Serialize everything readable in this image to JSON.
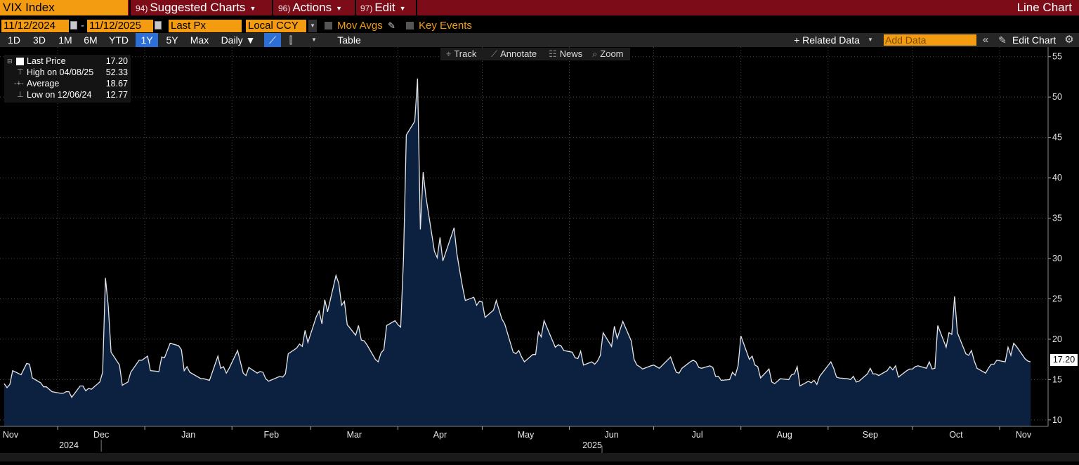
{
  "header": {
    "ticker": "VIX Index",
    "menus": [
      {
        "num": "94)",
        "label": "Suggested Charts"
      },
      {
        "num": "96)",
        "label": "Actions"
      },
      {
        "num": "97)",
        "label": "Edit"
      }
    ],
    "chart_type": "Line Chart"
  },
  "options": {
    "start_date": "11/12/2024",
    "end_date": "11/12/2025",
    "date_sep": "-",
    "field": "Last Px",
    "currency": "Local CCY",
    "mov_avgs": "Mov Avgs",
    "key_events": "Key Events"
  },
  "toolbar": {
    "periods": [
      "1D",
      "3D",
      "1M",
      "6M",
      "YTD",
      "1Y",
      "5Y",
      "Max"
    ],
    "active_period": "1Y",
    "frequency": "Daily ▼",
    "table": "Table",
    "related_data": "+ Related Data",
    "add_data_placeholder": "Add Data",
    "edit_chart": "Edit Chart"
  },
  "chart_tools": [
    "Track",
    "Annotate",
    "News",
    "Zoom"
  ],
  "legend": {
    "last_label": "Last Price",
    "last_value": "17.20",
    "high_label": "High on 04/08/25",
    "high_value": "52.33",
    "avg_label": "Average",
    "avg_value": "18.67",
    "low_label": "Low on 12/06/24",
    "low_value": "12.77"
  },
  "chart_data": {
    "type": "area",
    "series": [
      {
        "name": "VIX Index",
        "color": "#ffffff",
        "fill": "#0d2240"
      }
    ],
    "x_start": "2024-11-12",
    "x_end": "2025-11-12",
    "x_labels": [
      "Nov",
      "Dec",
      "Jan",
      "Feb",
      "Mar",
      "Apr",
      "May",
      "Jun",
      "Jul",
      "Aug",
      "Sep",
      "Oct",
      "Nov"
    ],
    "year_labels": [
      "2024",
      "2025"
    ],
    "y_ticks": [
      10,
      15,
      20,
      25,
      30,
      35,
      40,
      45,
      50,
      55
    ],
    "ylim": [
      9.2,
      55.5
    ],
    "y_axis_side": "right",
    "grid": true,
    "last_value_label": "17.20",
    "points": [
      [
        "2024-11-12",
        14.5
      ],
      [
        "2024-11-13",
        14.0
      ],
      [
        "2024-11-14",
        14.4
      ],
      [
        "2024-11-15",
        16.1
      ],
      [
        "2024-11-18",
        15.6
      ],
      [
        "2024-11-19",
        16.3
      ],
      [
        "2024-11-20",
        17.0
      ],
      [
        "2024-11-21",
        16.9
      ],
      [
        "2024-11-22",
        15.2
      ],
      [
        "2024-11-25",
        14.6
      ],
      [
        "2024-11-26",
        14.1
      ],
      [
        "2024-11-27",
        14.1
      ],
      [
        "2024-11-29",
        13.5
      ],
      [
        "2024-12-02",
        13.3
      ],
      [
        "2024-12-03",
        13.3
      ],
      [
        "2024-12-04",
        13.5
      ],
      [
        "2024-12-05",
        13.5
      ],
      [
        "2024-12-06",
        12.8
      ],
      [
        "2024-12-09",
        14.2
      ],
      [
        "2024-12-10",
        14.2
      ],
      [
        "2024-12-11",
        13.6
      ],
      [
        "2024-12-12",
        13.9
      ],
      [
        "2024-12-13",
        13.8
      ],
      [
        "2024-12-16",
        14.7
      ],
      [
        "2024-12-17",
        15.9
      ],
      [
        "2024-12-18",
        27.6
      ],
      [
        "2024-12-19",
        24.1
      ],
      [
        "2024-12-20",
        18.4
      ],
      [
        "2024-12-23",
        16.8
      ],
      [
        "2024-12-24",
        14.3
      ],
      [
        "2024-12-26",
        14.7
      ],
      [
        "2024-12-27",
        15.9
      ],
      [
        "2024-12-30",
        17.4
      ],
      [
        "2024-12-31",
        17.4
      ],
      [
        "2025-01-02",
        17.9
      ],
      [
        "2025-01-03",
        16.1
      ],
      [
        "2025-01-06",
        16.0
      ],
      [
        "2025-01-07",
        17.8
      ],
      [
        "2025-01-08",
        17.7
      ],
      [
        "2025-01-10",
        19.5
      ],
      [
        "2025-01-13",
        19.2
      ],
      [
        "2025-01-14",
        18.7
      ],
      [
        "2025-01-15",
        16.1
      ],
      [
        "2025-01-16",
        16.6
      ],
      [
        "2025-01-17",
        15.9
      ],
      [
        "2025-01-21",
        15.1
      ],
      [
        "2025-01-22",
        15.1
      ],
      [
        "2025-01-23",
        15.0
      ],
      [
        "2025-01-24",
        14.9
      ],
      [
        "2025-01-27",
        17.9
      ],
      [
        "2025-01-28",
        16.4
      ],
      [
        "2025-01-29",
        16.6
      ],
      [
        "2025-01-30",
        15.8
      ],
      [
        "2025-01-31",
        16.4
      ],
      [
        "2025-02-03",
        18.6
      ],
      [
        "2025-02-04",
        17.2
      ],
      [
        "2025-02-05",
        15.8
      ],
      [
        "2025-02-06",
        15.5
      ],
      [
        "2025-02-07",
        16.5
      ],
      [
        "2025-02-10",
        15.8
      ],
      [
        "2025-02-11",
        16.0
      ],
      [
        "2025-02-12",
        15.9
      ],
      [
        "2025-02-13",
        15.1
      ],
      [
        "2025-02-14",
        14.8
      ],
      [
        "2025-02-18",
        15.4
      ],
      [
        "2025-02-19",
        15.3
      ],
      [
        "2025-02-20",
        15.7
      ],
      [
        "2025-02-21",
        18.2
      ],
      [
        "2025-02-24",
        18.9
      ],
      [
        "2025-02-25",
        19.4
      ],
      [
        "2025-02-26",
        19.1
      ],
      [
        "2025-02-27",
        21.1
      ],
      [
        "2025-02-28",
        19.6
      ],
      [
        "2025-03-03",
        22.8
      ],
      [
        "2025-03-04",
        23.5
      ],
      [
        "2025-03-05",
        21.9
      ],
      [
        "2025-03-06",
        24.9
      ],
      [
        "2025-03-07",
        23.4
      ],
      [
        "2025-03-10",
        27.9
      ],
      [
        "2025-03-11",
        26.9
      ],
      [
        "2025-03-12",
        24.2
      ],
      [
        "2025-03-13",
        24.7
      ],
      [
        "2025-03-14",
        21.8
      ],
      [
        "2025-03-17",
        20.5
      ],
      [
        "2025-03-18",
        21.7
      ],
      [
        "2025-03-19",
        19.9
      ],
      [
        "2025-03-20",
        19.8
      ],
      [
        "2025-03-21",
        19.3
      ],
      [
        "2025-03-24",
        17.5
      ],
      [
        "2025-03-25",
        17.2
      ],
      [
        "2025-03-26",
        18.3
      ],
      [
        "2025-03-27",
        18.7
      ],
      [
        "2025-03-28",
        21.7
      ],
      [
        "2025-03-31",
        22.3
      ],
      [
        "2025-04-01",
        21.8
      ],
      [
        "2025-04-02",
        21.5
      ],
      [
        "2025-04-03",
        30.0
      ],
      [
        "2025-04-04",
        45.3
      ],
      [
        "2025-04-07",
        47.0
      ],
      [
        "2025-04-08",
        52.3
      ],
      [
        "2025-04-09",
        33.6
      ],
      [
        "2025-04-10",
        40.7
      ],
      [
        "2025-04-11",
        37.6
      ],
      [
        "2025-04-14",
        30.9
      ],
      [
        "2025-04-15",
        30.1
      ],
      [
        "2025-04-16",
        32.6
      ],
      [
        "2025-04-17",
        29.7
      ],
      [
        "2025-04-21",
        33.8
      ],
      [
        "2025-04-22",
        30.6
      ],
      [
        "2025-04-23",
        28.5
      ],
      [
        "2025-04-24",
        26.5
      ],
      [
        "2025-04-25",
        24.8
      ],
      [
        "2025-04-28",
        25.2
      ],
      [
        "2025-04-29",
        24.2
      ],
      [
        "2025-04-30",
        24.7
      ],
      [
        "2025-05-01",
        24.6
      ],
      [
        "2025-05-02",
        22.7
      ],
      [
        "2025-05-05",
        23.6
      ],
      [
        "2025-05-06",
        24.8
      ],
      [
        "2025-05-07",
        23.6
      ],
      [
        "2025-05-08",
        22.5
      ],
      [
        "2025-05-09",
        21.9
      ],
      [
        "2025-05-12",
        18.4
      ],
      [
        "2025-05-13",
        18.2
      ],
      [
        "2025-05-14",
        18.6
      ],
      [
        "2025-05-15",
        17.8
      ],
      [
        "2025-05-16",
        17.2
      ],
      [
        "2025-05-19",
        18.1
      ],
      [
        "2025-05-20",
        18.1
      ],
      [
        "2025-05-21",
        20.9
      ],
      [
        "2025-05-22",
        20.3
      ],
      [
        "2025-05-23",
        22.3
      ],
      [
        "2025-05-27",
        19.0
      ],
      [
        "2025-05-28",
        19.3
      ],
      [
        "2025-05-29",
        19.2
      ],
      [
        "2025-05-30",
        18.6
      ],
      [
        "2025-06-02",
        18.4
      ],
      [
        "2025-06-03",
        17.7
      ],
      [
        "2025-06-04",
        17.6
      ],
      [
        "2025-06-05",
        18.5
      ],
      [
        "2025-06-06",
        16.8
      ],
      [
        "2025-06-09",
        17.2
      ],
      [
        "2025-06-10",
        16.9
      ],
      [
        "2025-06-11",
        17.3
      ],
      [
        "2025-06-12",
        18.0
      ],
      [
        "2025-06-13",
        20.8
      ],
      [
        "2025-06-16",
        19.1
      ],
      [
        "2025-06-17",
        21.6
      ],
      [
        "2025-06-18",
        20.1
      ],
      [
        "2025-06-20",
        22.2
      ],
      [
        "2025-06-23",
        19.8
      ],
      [
        "2025-06-24",
        17.5
      ],
      [
        "2025-06-25",
        16.8
      ],
      [
        "2025-06-26",
        16.6
      ],
      [
        "2025-06-27",
        16.3
      ],
      [
        "2025-06-30",
        16.7
      ],
      [
        "2025-07-01",
        16.8
      ],
      [
        "2025-07-02",
        16.6
      ],
      [
        "2025-07-03",
        16.4
      ],
      [
        "2025-07-07",
        17.8
      ],
      [
        "2025-07-08",
        16.8
      ],
      [
        "2025-07-09",
        15.9
      ],
      [
        "2025-07-10",
        15.8
      ],
      [
        "2025-07-11",
        16.4
      ],
      [
        "2025-07-14",
        17.2
      ],
      [
        "2025-07-15",
        17.4
      ],
      [
        "2025-07-16",
        17.2
      ],
      [
        "2025-07-17",
        16.5
      ],
      [
        "2025-07-18",
        16.4
      ],
      [
        "2025-07-21",
        16.7
      ],
      [
        "2025-07-22",
        16.5
      ],
      [
        "2025-07-23",
        15.4
      ],
      [
        "2025-07-24",
        15.4
      ],
      [
        "2025-07-25",
        14.9
      ],
      [
        "2025-07-28",
        15.0
      ],
      [
        "2025-07-29",
        15.9
      ],
      [
        "2025-07-30",
        15.5
      ],
      [
        "2025-07-31",
        16.7
      ],
      [
        "2025-08-01",
        20.4
      ],
      [
        "2025-08-04",
        17.5
      ],
      [
        "2025-08-05",
        17.9
      ],
      [
        "2025-08-06",
        16.8
      ],
      [
        "2025-08-07",
        16.6
      ],
      [
        "2025-08-08",
        15.2
      ],
      [
        "2025-08-11",
        16.3
      ],
      [
        "2025-08-12",
        14.7
      ],
      [
        "2025-08-13",
        14.5
      ],
      [
        "2025-08-14",
        14.8
      ],
      [
        "2025-08-15",
        15.1
      ],
      [
        "2025-08-18",
        15.0
      ],
      [
        "2025-08-19",
        15.6
      ],
      [
        "2025-08-20",
        15.7
      ],
      [
        "2025-08-21",
        16.6
      ],
      [
        "2025-08-22",
        14.2
      ],
      [
        "2025-08-25",
        14.8
      ],
      [
        "2025-08-26",
        14.6
      ],
      [
        "2025-08-27",
        14.9
      ],
      [
        "2025-08-28",
        14.4
      ],
      [
        "2025-08-29",
        15.4
      ],
      [
        "2025-09-02",
        17.2
      ],
      [
        "2025-09-03",
        16.4
      ],
      [
        "2025-09-04",
        15.3
      ],
      [
        "2025-09-05",
        15.2
      ],
      [
        "2025-09-08",
        15.1
      ],
      [
        "2025-09-09",
        15.0
      ],
      [
        "2025-09-10",
        15.4
      ],
      [
        "2025-09-11",
        14.7
      ],
      [
        "2025-09-12",
        14.8
      ],
      [
        "2025-09-15",
        15.7
      ],
      [
        "2025-09-16",
        16.4
      ],
      [
        "2025-09-17",
        15.7
      ],
      [
        "2025-09-18",
        15.7
      ],
      [
        "2025-09-19",
        15.5
      ],
      [
        "2025-09-22",
        16.1
      ],
      [
        "2025-09-23",
        16.6
      ],
      [
        "2025-09-24",
        16.2
      ],
      [
        "2025-09-25",
        16.7
      ],
      [
        "2025-09-26",
        15.3
      ],
      [
        "2025-09-29",
        16.1
      ],
      [
        "2025-09-30",
        16.3
      ],
      [
        "2025-10-01",
        16.3
      ],
      [
        "2025-10-02",
        16.6
      ],
      [
        "2025-10-03",
        16.7
      ],
      [
        "2025-10-06",
        16.4
      ],
      [
        "2025-10-07",
        17.2
      ],
      [
        "2025-10-08",
        16.3
      ],
      [
        "2025-10-09",
        16.4
      ],
      [
        "2025-10-10",
        21.7
      ],
      [
        "2025-10-13",
        19.0
      ],
      [
        "2025-10-14",
        20.8
      ],
      [
        "2025-10-15",
        20.6
      ],
      [
        "2025-10-16",
        25.3
      ],
      [
        "2025-10-17",
        20.8
      ],
      [
        "2025-10-20",
        18.2
      ],
      [
        "2025-10-21",
        18.0
      ],
      [
        "2025-10-22",
        18.6
      ],
      [
        "2025-10-23",
        17.3
      ],
      [
        "2025-10-24",
        16.4
      ],
      [
        "2025-10-27",
        15.8
      ],
      [
        "2025-10-28",
        16.4
      ],
      [
        "2025-10-29",
        16.9
      ],
      [
        "2025-10-30",
        16.9
      ],
      [
        "2025-10-31",
        17.4
      ],
      [
        "2025-11-03",
        17.2
      ],
      [
        "2025-11-04",
        19.0
      ],
      [
        "2025-11-05",
        18.0
      ],
      [
        "2025-11-06",
        19.5
      ],
      [
        "2025-11-07",
        19.1
      ],
      [
        "2025-11-10",
        17.6
      ],
      [
        "2025-11-11",
        17.3
      ],
      [
        "2025-11-12",
        17.2
      ]
    ]
  }
}
